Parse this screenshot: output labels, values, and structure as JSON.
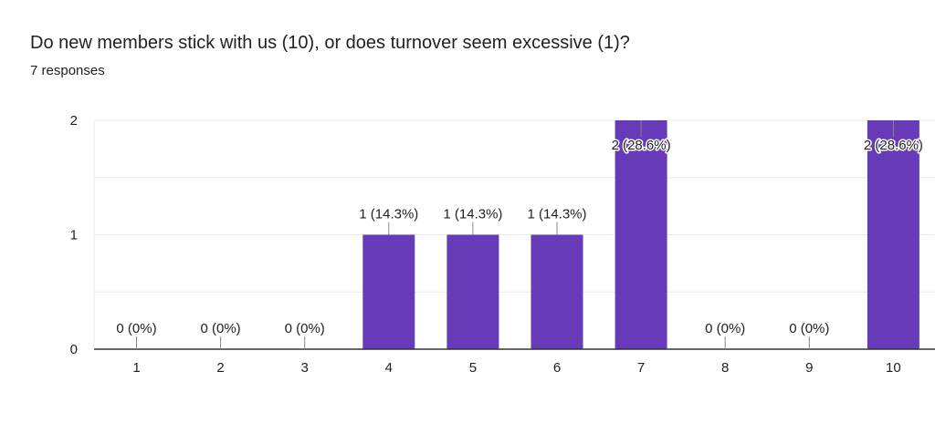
{
  "question": "Do new members stick with us (10), or does turnover seem excessive (1)?",
  "responses": "7 responses",
  "chart_data": {
    "type": "bar",
    "categories": [
      "1",
      "2",
      "3",
      "4",
      "5",
      "6",
      "7",
      "8",
      "9",
      "10"
    ],
    "values": [
      0,
      0,
      0,
      1,
      1,
      1,
      2,
      0,
      0,
      2
    ],
    "data_labels": [
      "0 (0%)",
      "0 (0%)",
      "0 (0%)",
      "1 (14.3%)",
      "1 (14.3%)",
      "1 (14.3%)",
      "2 (28.6%)",
      "0 (0%)",
      "0 (0%)",
      "2 (28.6%)"
    ],
    "y_ticks": [
      "0",
      "1",
      "2"
    ],
    "ylim": [
      0,
      2
    ],
    "grid": true,
    "bar_color": "#673ab7",
    "grid_color": "#e8e8e8",
    "axis_color": "#333333"
  }
}
